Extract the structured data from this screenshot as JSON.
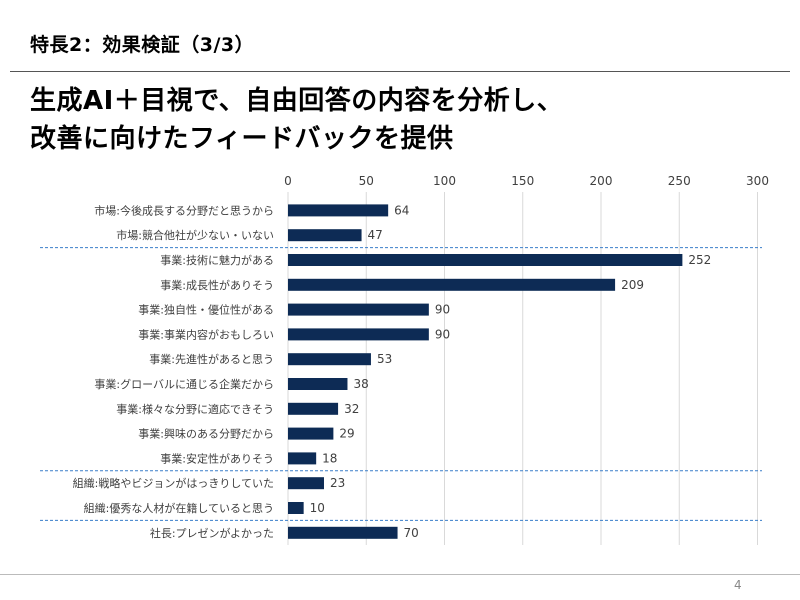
{
  "slide": {
    "header": "特長2：効果検証（3/3）",
    "headline_lines": [
      "生成AI＋目視で、自由回答の内容を分析し、",
      "改善に向けたフィードバックを提供"
    ],
    "page_number": "4"
  },
  "colors": {
    "bar": "#0d2b55",
    "divider": "#3a7ec9",
    "grid": "#d9d9d9",
    "label": "#404040",
    "value": "#404040"
  },
  "chart_data": {
    "type": "bar",
    "orientation": "horizontal",
    "xlim": [
      0,
      300
    ],
    "xticks": [
      "0",
      "50",
      "100",
      "150",
      "200",
      "250",
      "300"
    ],
    "xtick_values": [
      0,
      50,
      100,
      150,
      200,
      250,
      300
    ],
    "axis_position": "top",
    "grid": true,
    "categories": [
      "市場:今後成長する分野だと思うから",
      "市場:競合他社が少ない・いない",
      "事業:技術に魅力がある",
      "事業:成長性がありそう",
      "事業:独自性・優位性がある",
      "事業:事業内容がおもしろい",
      "事業:先進性があると思う",
      "事業:グローバルに通じる企業だから",
      "事業:様々な分野に適応できそう",
      "事業:興味のある分野だから",
      "事業:安定性がありそう",
      "組織:戦略やビジョンがはっきりしていた",
      "組織:優秀な人材が在籍していると思う",
      "社長:プレゼンがよかった"
    ],
    "values": [
      64,
      47,
      252,
      209,
      90,
      90,
      53,
      38,
      32,
      29,
      18,
      23,
      10,
      70
    ],
    "value_labels": [
      "64",
      "47",
      "252",
      "209",
      "90",
      "90",
      "53",
      "38",
      "32",
      "29",
      "18",
      "23",
      "10",
      "70"
    ],
    "group_dividers_after": [
      1,
      10,
      12
    ]
  }
}
